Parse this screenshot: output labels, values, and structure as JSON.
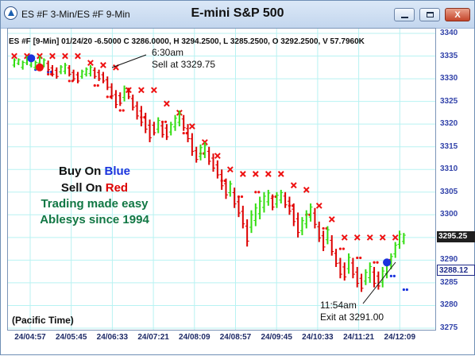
{
  "window": {
    "symbol_title": "ES #F 3-Min/ES #F 9-Min",
    "title": "E-mini S&P 500",
    "icons": {
      "app": "app-logo-icon",
      "minimize": "minimize-icon",
      "maximize": "maximize-icon",
      "close": "close-icon"
    },
    "close_label": "X"
  },
  "info_line": "ES #F [9-Min] 01/24/20  -6.5000 C 3286.0000, H 3294.2500, L 3285.2500, O 3292.2500, V 57.7960K",
  "annotations": {
    "sell_time": "6:30am",
    "sell_text": "Sell at 3329.75",
    "exit_time": "11:54am",
    "exit_text": "Exit at 3291.00"
  },
  "promo": {
    "buy_prefix": "Buy On ",
    "buy_word": "Blue",
    "sell_prefix": "Sell On ",
    "sell_word": "Red",
    "line3": "Trading made easy",
    "line4": "Ablesys since 1994"
  },
  "timezone_label": "(Pacific Time)",
  "price_tags": {
    "last": "3295.25",
    "exit": "3288.12"
  },
  "colors": {
    "up_bar": "#33dd11",
    "down_bar": "#dd0000",
    "sell_signal": "#ee1111",
    "buy_signal": "#1a33dd",
    "grid": "#b8f2f2",
    "buy_text": "#1a33dd",
    "sell_text": "#dd0000",
    "promo_text": "#117744"
  },
  "chart_data": {
    "type": "bar",
    "series_type": "ohlc-price-bars",
    "yticks": [
      3340,
      3335,
      3330,
      3325,
      3320,
      3315,
      3310,
      3305,
      3300,
      3295,
      3290,
      3285,
      3280,
      3275
    ],
    "ylim": [
      3274,
      3341
    ],
    "xticks": [
      "24/04:57",
      "24/05:45",
      "24/06:33",
      "24/07:21",
      "24/08:09",
      "24/08:57",
      "24/09:45",
      "24/10:33",
      "24/11:21",
      "24/12:09"
    ],
    "grid": true,
    "price_bars": [
      {
        "h": 3334.5,
        "l": 3332.5,
        "dir": "up"
      },
      {
        "h": 3334.5,
        "l": 3333.0,
        "dir": "up"
      },
      {
        "h": 3334.0,
        "l": 3332.0,
        "dir": "up"
      },
      {
        "h": 3335.0,
        "l": 3333.0,
        "dir": "up"
      },
      {
        "h": 3334.5,
        "l": 3332.5,
        "dir": "up"
      },
      {
        "h": 3334.0,
        "l": 3332.0,
        "dir": "up"
      },
      {
        "h": 3335.0,
        "l": 3333.0,
        "dir": "up"
      },
      {
        "h": 3334.5,
        "l": 3332.5,
        "dir": "up"
      },
      {
        "h": 3334.0,
        "l": 3331.5,
        "dir": "down"
      },
      {
        "h": 3333.0,
        "l": 3330.5,
        "dir": "down"
      },
      {
        "h": 3332.5,
        "l": 3330.0,
        "dir": "down"
      },
      {
        "h": 3333.0,
        "l": 3331.0,
        "dir": "up"
      },
      {
        "h": 3333.5,
        "l": 3331.0,
        "dir": "up"
      },
      {
        "h": 3333.0,
        "l": 3330.5,
        "dir": "down"
      },
      {
        "h": 3332.0,
        "l": 3329.5,
        "dir": "down"
      },
      {
        "h": 3331.5,
        "l": 3329.0,
        "dir": "down"
      },
      {
        "h": 3332.0,
        "l": 3330.0,
        "dir": "up"
      },
      {
        "h": 3332.5,
        "l": 3330.5,
        "dir": "up"
      },
      {
        "h": 3333.0,
        "l": 3330.5,
        "dir": "up"
      },
      {
        "h": 3332.5,
        "l": 3330.0,
        "dir": "down"
      },
      {
        "h": 3332.0,
        "l": 3329.5,
        "dir": "down"
      },
      {
        "h": 3331.5,
        "l": 3329.0,
        "dir": "down"
      },
      {
        "h": 3330.5,
        "l": 3327.5,
        "dir": "down"
      },
      {
        "h": 3329.0,
        "l": 3325.5,
        "dir": "down"
      },
      {
        "h": 3327.5,
        "l": 3323.5,
        "dir": "down"
      },
      {
        "h": 3327.0,
        "l": 3324.0,
        "dir": "down"
      },
      {
        "h": 3328.5,
        "l": 3325.0,
        "dir": "up"
      },
      {
        "h": 3328.0,
        "l": 3325.5,
        "dir": "down"
      },
      {
        "h": 3326.5,
        "l": 3323.0,
        "dir": "down"
      },
      {
        "h": 3325.0,
        "l": 3321.0,
        "dir": "down"
      },
      {
        "h": 3324.0,
        "l": 3319.5,
        "dir": "down"
      },
      {
        "h": 3322.5,
        "l": 3318.0,
        "dir": "down"
      },
      {
        "h": 3321.0,
        "l": 3316.0,
        "dir": "down"
      },
      {
        "h": 3320.5,
        "l": 3317.5,
        "dir": "down"
      },
      {
        "h": 3321.5,
        "l": 3318.0,
        "dir": "up"
      },
      {
        "h": 3320.5,
        "l": 3317.0,
        "dir": "down"
      },
      {
        "h": 3320.0,
        "l": 3316.5,
        "dir": "down"
      },
      {
        "h": 3320.5,
        "l": 3317.5,
        "dir": "up"
      },
      {
        "h": 3322.0,
        "l": 3318.5,
        "dir": "up"
      },
      {
        "h": 3323.0,
        "l": 3319.5,
        "dir": "up"
      },
      {
        "h": 3322.0,
        "l": 3318.5,
        "dir": "down"
      },
      {
        "h": 3320.0,
        "l": 3316.0,
        "dir": "down"
      },
      {
        "h": 3318.0,
        "l": 3313.0,
        "dir": "down"
      },
      {
        "h": 3315.0,
        "l": 3311.5,
        "dir": "down"
      },
      {
        "h": 3315.5,
        "l": 3312.0,
        "dir": "up"
      },
      {
        "h": 3316.0,
        "l": 3312.5,
        "dir": "up"
      },
      {
        "h": 3315.0,
        "l": 3311.0,
        "dir": "down"
      },
      {
        "h": 3313.5,
        "l": 3309.5,
        "dir": "down"
      },
      {
        "h": 3312.0,
        "l": 3308.0,
        "dir": "down"
      },
      {
        "h": 3310.0,
        "l": 3305.5,
        "dir": "down"
      },
      {
        "h": 3308.0,
        "l": 3303.5,
        "dir": "down"
      },
      {
        "h": 3307.5,
        "l": 3304.0,
        "dir": "up"
      },
      {
        "h": 3306.0,
        "l": 3301.5,
        "dir": "down"
      },
      {
        "h": 3304.0,
        "l": 3299.5,
        "dir": "down"
      },
      {
        "h": 3302.0,
        "l": 3297.0,
        "dir": "down"
      },
      {
        "h": 3299.0,
        "l": 3293.0,
        "dir": "down"
      },
      {
        "h": 3301.0,
        "l": 3296.0,
        "dir": "up"
      },
      {
        "h": 3302.5,
        "l": 3297.5,
        "dir": "up"
      },
      {
        "h": 3304.0,
        "l": 3299.0,
        "dir": "up"
      },
      {
        "h": 3305.0,
        "l": 3300.5,
        "dir": "up"
      },
      {
        "h": 3305.5,
        "l": 3302.0,
        "dir": "up"
      },
      {
        "h": 3304.5,
        "l": 3301.0,
        "dir": "down"
      },
      {
        "h": 3305.0,
        "l": 3301.5,
        "dir": "up"
      },
      {
        "h": 3305.5,
        "l": 3302.5,
        "dir": "up"
      },
      {
        "h": 3305.0,
        "l": 3301.5,
        "dir": "down"
      },
      {
        "h": 3304.0,
        "l": 3300.0,
        "dir": "down"
      },
      {
        "h": 3302.5,
        "l": 3297.5,
        "dir": "down"
      },
      {
        "h": 3300.5,
        "l": 3295.0,
        "dir": "down"
      },
      {
        "h": 3299.5,
        "l": 3295.5,
        "dir": "up"
      },
      {
        "h": 3301.0,
        "l": 3297.0,
        "dir": "up"
      },
      {
        "h": 3302.5,
        "l": 3298.5,
        "dir": "up"
      },
      {
        "h": 3301.5,
        "l": 3297.0,
        "dir": "down"
      },
      {
        "h": 3298.5,
        "l": 3294.0,
        "dir": "down"
      },
      {
        "h": 3296.5,
        "l": 3292.0,
        "dir": "down"
      },
      {
        "h": 3297.5,
        "l": 3293.5,
        "dir": "up"
      },
      {
        "h": 3295.5,
        "l": 3291.0,
        "dir": "down"
      },
      {
        "h": 3292.5,
        "l": 3288.5,
        "dir": "down"
      },
      {
        "h": 3290.5,
        "l": 3286.0,
        "dir": "down"
      },
      {
        "h": 3289.5,
        "l": 3285.5,
        "dir": "down"
      },
      {
        "h": 3291.5,
        "l": 3287.0,
        "dir": "up"
      },
      {
        "h": 3290.5,
        "l": 3286.0,
        "dir": "down"
      },
      {
        "h": 3288.5,
        "l": 3284.0,
        "dir": "down"
      },
      {
        "h": 3287.0,
        "l": 3283.0,
        "dir": "down"
      },
      {
        "h": 3288.0,
        "l": 3284.5,
        "dir": "up"
      },
      {
        "h": 3289.5,
        "l": 3285.0,
        "dir": "up"
      },
      {
        "h": 3288.5,
        "l": 3284.0,
        "dir": "down"
      },
      {
        "h": 3287.5,
        "l": 3283.5,
        "dir": "down"
      },
      {
        "h": 3288.5,
        "l": 3284.0,
        "dir": "up"
      },
      {
        "h": 3290.0,
        "l": 3286.0,
        "dir": "up"
      },
      {
        "h": 3291.5,
        "l": 3288.0,
        "dir": "up"
      },
      {
        "h": 3294.0,
        "l": 3290.5,
        "dir": "up"
      },
      {
        "h": 3296.5,
        "l": 3292.5,
        "dir": "up"
      },
      {
        "h": 3296.0,
        "l": 3293.5,
        "dir": "up"
      }
    ],
    "sell_markers": [
      {
        "bar": 0,
        "price": 3335.0
      },
      {
        "bar": 3,
        "price": 3335.0
      },
      {
        "bar": 6,
        "price": 3335.0
      },
      {
        "bar": 9,
        "price": 3335.0
      },
      {
        "bar": 12,
        "price": 3335.0
      },
      {
        "bar": 15,
        "price": 3335.0
      },
      {
        "bar": 18,
        "price": 3333.5
      },
      {
        "bar": 21,
        "price": 3333.0
      },
      {
        "bar": 24,
        "price": 3332.5
      },
      {
        "bar": 27,
        "price": 3327.5
      },
      {
        "bar": 30,
        "price": 3327.5
      },
      {
        "bar": 33,
        "price": 3327.5
      },
      {
        "bar": 36,
        "price": 3324.5
      },
      {
        "bar": 39,
        "price": 3322.5
      },
      {
        "bar": 42,
        "price": 3319.5
      },
      {
        "bar": 45,
        "price": 3316.0
      },
      {
        "bar": 48,
        "price": 3313.0
      },
      {
        "bar": 51,
        "price": 3310.0
      },
      {
        "bar": 54,
        "price": 3309.0
      },
      {
        "bar": 57,
        "price": 3309.0
      },
      {
        "bar": 60,
        "price": 3309.0
      },
      {
        "bar": 63,
        "price": 3309.0
      },
      {
        "bar": 66,
        "price": 3306.5
      },
      {
        "bar": 69,
        "price": 3305.5
      },
      {
        "bar": 72,
        "price": 3302.0
      },
      {
        "bar": 75,
        "price": 3299.0
      },
      {
        "bar": 78,
        "price": 3295.0
      },
      {
        "bar": 81,
        "price": 3295.0
      },
      {
        "bar": 84,
        "price": 3295.0
      },
      {
        "bar": 87,
        "price": 3295.0
      },
      {
        "bar": 90,
        "price": 3295.0
      }
    ],
    "stop_dots": [
      {
        "bar": 8,
        "price": 3331.0
      },
      {
        "bar": 13,
        "price": 3329.5
      },
      {
        "bar": 19,
        "price": 3328.5
      },
      {
        "bar": 22,
        "price": 3326.0
      },
      {
        "bar": 25,
        "price": 3323.0
      },
      {
        "bar": 30,
        "price": 3321.5
      },
      {
        "bar": 35,
        "price": 3320.5
      },
      {
        "bar": 40,
        "price": 3318.0
      },
      {
        "bar": 44,
        "price": 3313.5
      },
      {
        "bar": 49,
        "price": 3307.5
      },
      {
        "bar": 53,
        "price": 3304.0
      },
      {
        "bar": 57,
        "price": 3305.0
      },
      {
        "bar": 61,
        "price": 3304.0
      },
      {
        "bar": 65,
        "price": 3302.0
      },
      {
        "bar": 69,
        "price": 3300.0
      },
      {
        "bar": 73,
        "price": 3297.0
      },
      {
        "bar": 77,
        "price": 3292.5
      },
      {
        "bar": 81,
        "price": 3290.5
      },
      {
        "bar": 85,
        "price": 3289.5
      },
      {
        "bar": 88,
        "price": 3290.0
      }
    ],
    "buy_trail": [
      {
        "bar": 5,
        "price": 3332.0
      },
      {
        "bar": 8,
        "price": 3331.5
      },
      {
        "bar": 89,
        "price": 3286.5
      },
      {
        "bar": 92,
        "price": 3283.5
      }
    ],
    "entry_points": [
      {
        "side": "buy",
        "bar": 4,
        "price": 3334.5
      },
      {
        "side": "sell",
        "bar": 6,
        "price": 3332.5
      },
      {
        "side": "buy",
        "bar": 88,
        "price": 3289.5
      }
    ]
  }
}
